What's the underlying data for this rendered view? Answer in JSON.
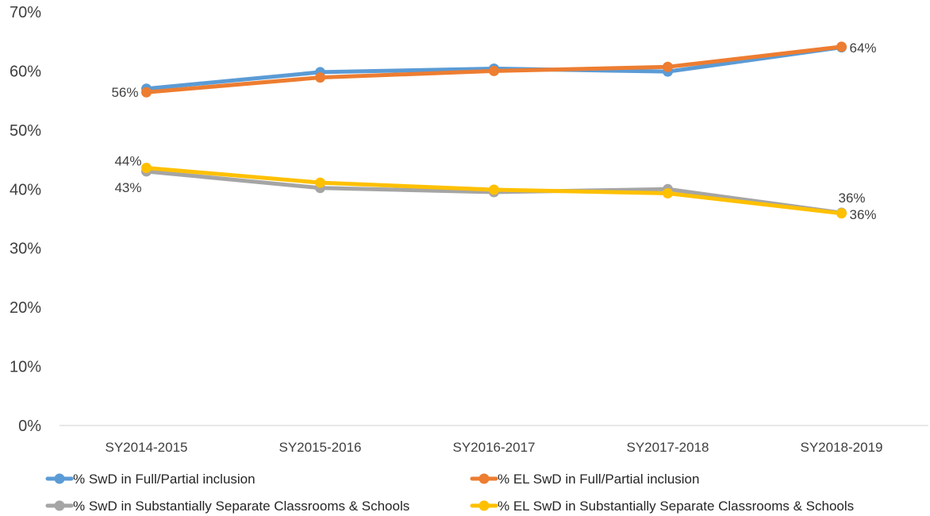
{
  "chart_data": {
    "type": "line",
    "title": "",
    "xlabel": "",
    "ylabel": "",
    "categories": [
      "SY2014-2015",
      "SY2015-2016",
      "SY2016-2017",
      "SY2017-2018",
      "SY2018-2019"
    ],
    "ylim": [
      0,
      70
    ],
    "yticks": [
      "0%",
      "10%",
      "20%",
      "30%",
      "40%",
      "50%",
      "60%",
      "70%"
    ],
    "grid": false,
    "legend_position": "bottom",
    "series": [
      {
        "name": "% SwD in Full/Partial inclusion",
        "color": "#5B9BD5",
        "values": [
          57,
          59.8,
          60.4,
          59.9,
          64
        ]
      },
      {
        "name": "% EL SwD in Full/Partial inclusion",
        "color": "#ED7D31",
        "values": [
          56.4,
          58.9,
          60,
          60.7,
          64.1
        ]
      },
      {
        "name": "% SwD in Substantially Separate Classrooms & Schools",
        "color": "#A5A5A5",
        "values": [
          43,
          40.2,
          39.5,
          40,
          36
        ]
      },
      {
        "name": "% EL SwD in Substantially Separate Classrooms & Schools",
        "color": "#FFC000",
        "values": [
          43.6,
          41.1,
          39.9,
          39.3,
          35.9
        ]
      }
    ],
    "data_labels": [
      {
        "series": 1,
        "index": 0,
        "text": "56%"
      },
      {
        "series": 1,
        "index": 4,
        "text": "64%"
      },
      {
        "series": 3,
        "index": 0,
        "text": "44%"
      },
      {
        "series": 2,
        "index": 0,
        "text": "43%"
      },
      {
        "series": 2,
        "index": 4,
        "text": "36%"
      },
      {
        "series": 3,
        "index": 4,
        "text": "36%"
      }
    ]
  }
}
